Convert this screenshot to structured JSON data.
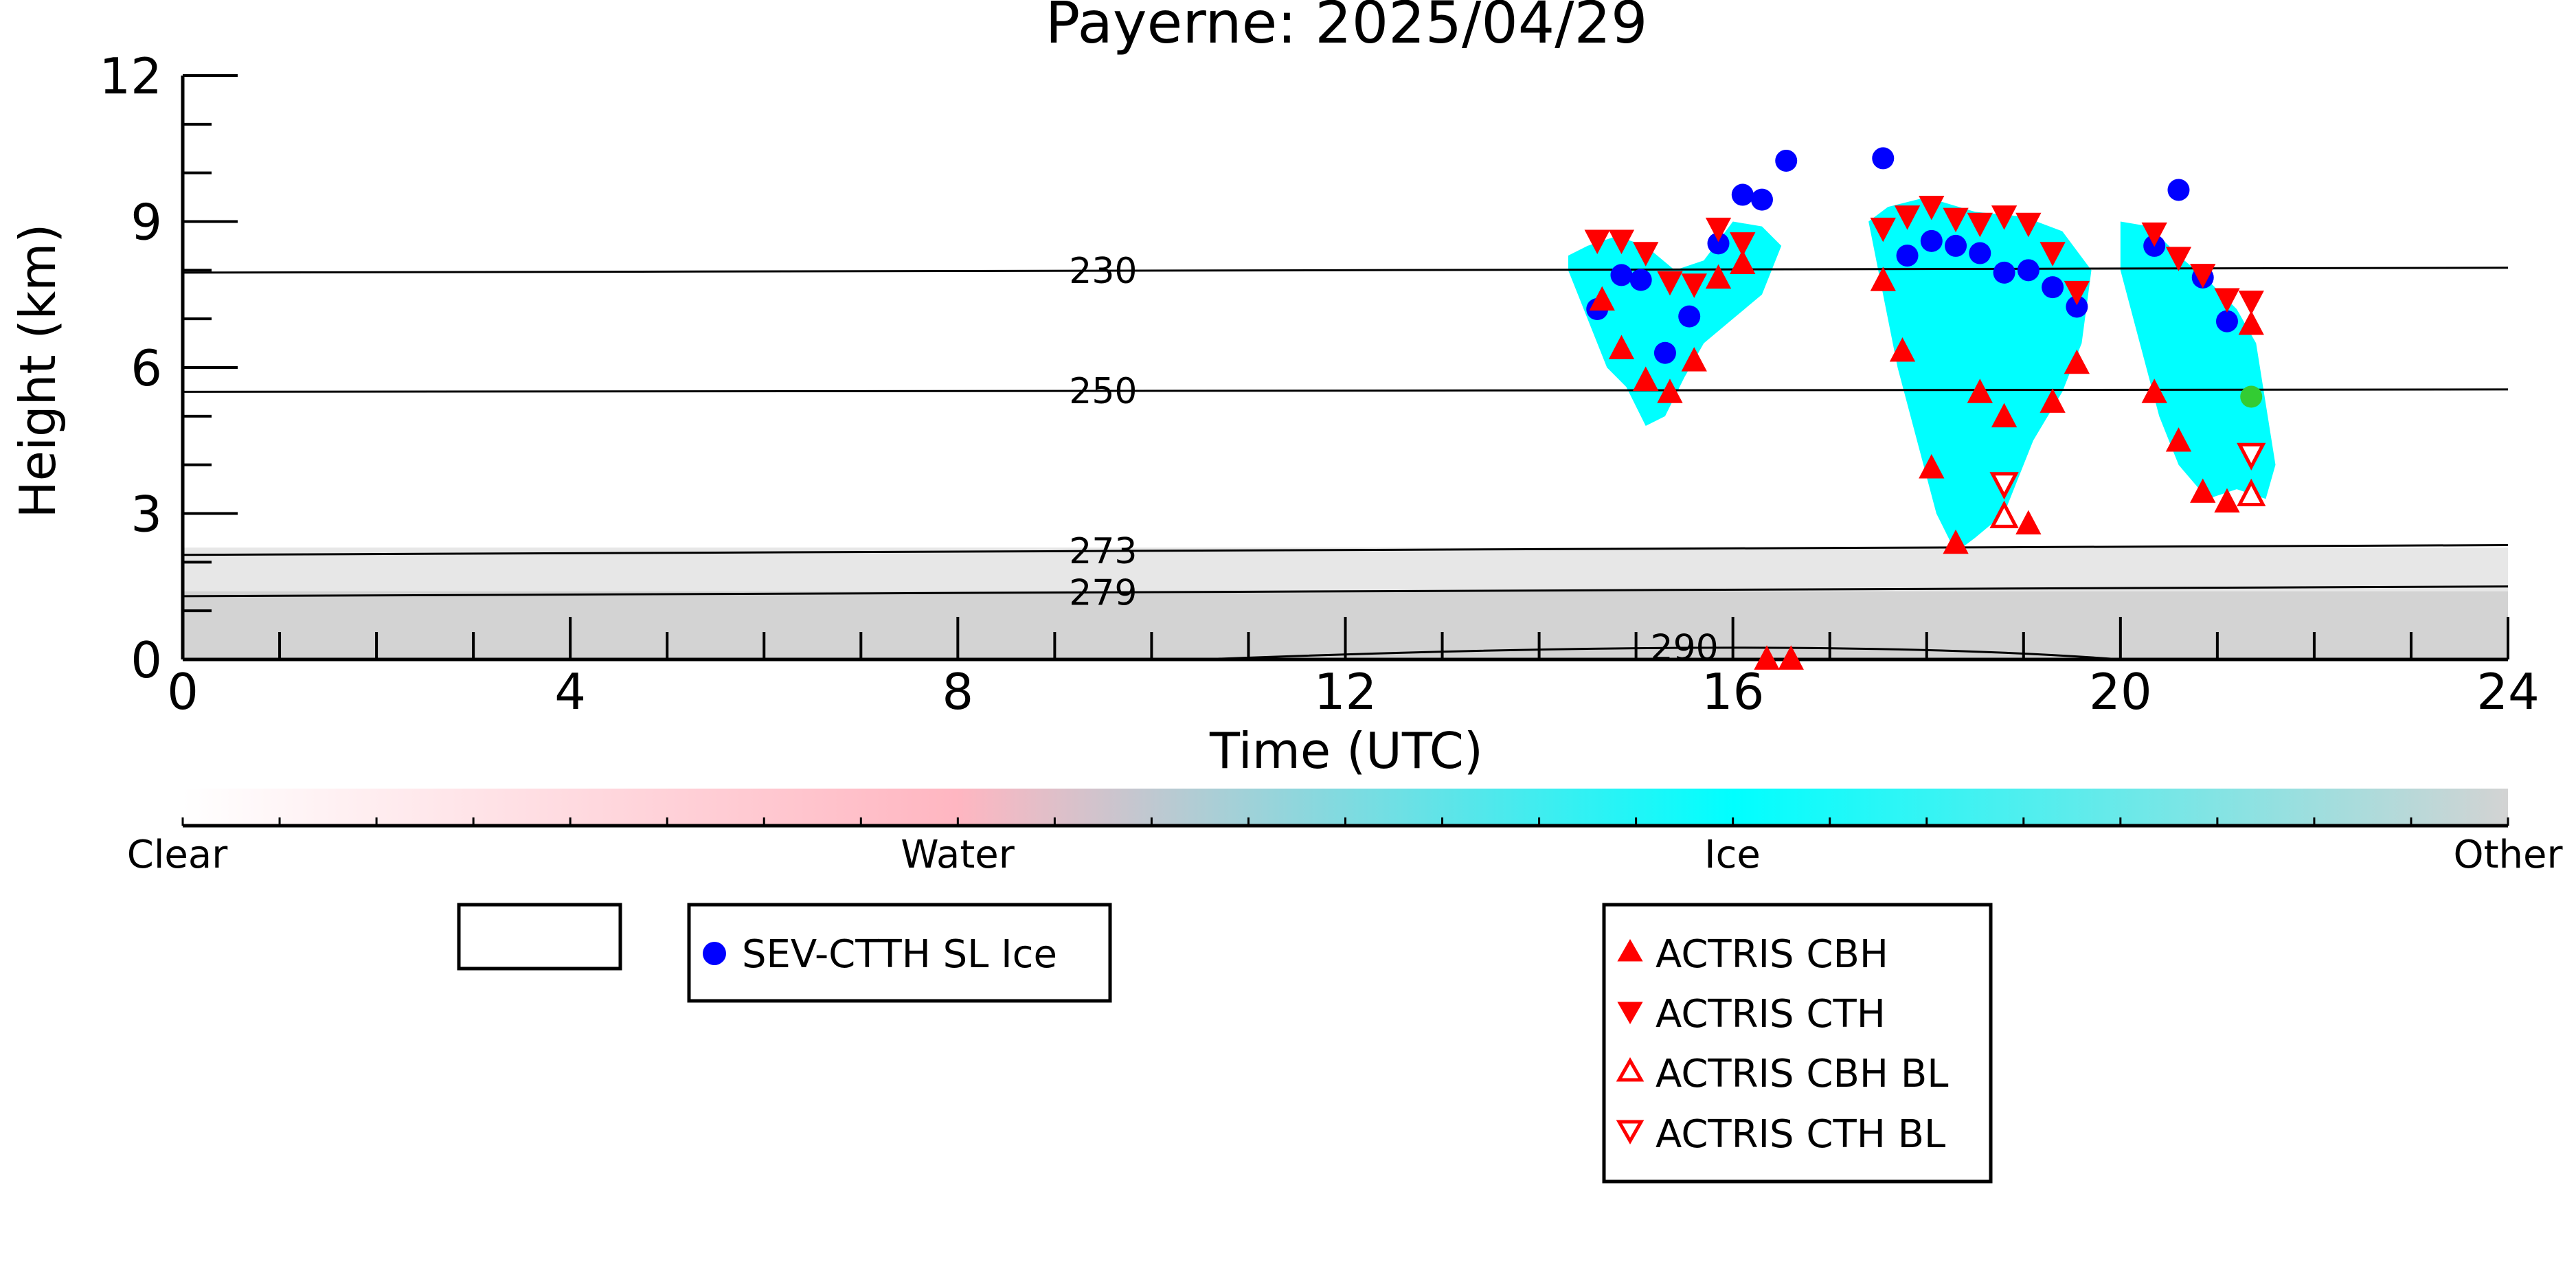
{
  "chart_data": {
    "type": "scatter",
    "title": "Payerne: 2025/04/29",
    "xlabel": "Time (UTC)",
    "ylabel": "Height (km)",
    "xlim": [
      0,
      24
    ],
    "ylim": [
      0,
      12
    ],
    "xticks": [
      0,
      4,
      8,
      12,
      16,
      20,
      24
    ],
    "yticks": [
      0,
      3,
      6,
      9,
      12
    ],
    "isotherms": [
      {
        "label": "230",
        "x": [
          0,
          24
        ],
        "y": [
          7.95,
          8.05
        ],
        "label_x": 9.5
      },
      {
        "label": "250",
        "x": [
          0,
          24
        ],
        "y": [
          5.5,
          5.55
        ],
        "label_x": 9.5
      },
      {
        "label": "273",
        "x": [
          0,
          24
        ],
        "y": [
          2.15,
          2.35
        ],
        "label_x": 9.5
      },
      {
        "label": "279",
        "x": [
          0,
          24
        ],
        "y": [
          1.3,
          1.5
        ],
        "label_x": 9.5
      },
      {
        "label": "290",
        "x": [
          10.5,
          16.8,
          20
        ],
        "y": [
          0,
          0.2,
          0
        ],
        "label_x": 15.5
      }
    ],
    "colorbar": {
      "labels": [
        "Clear",
        "Water",
        "Ice",
        "Other"
      ],
      "colors": [
        "#ffffff",
        "#ffb6c1",
        "#00ffff",
        "#d3d3d3"
      ]
    },
    "legends": [
      {
        "entries": []
      },
      {
        "entries": [
          {
            "label": "SEV-CTTH SL Ice",
            "marker": "circle",
            "color": "#0000ff"
          }
        ]
      },
      {
        "entries": [
          {
            "label": "ACTRIS CBH",
            "marker": "triangle-up",
            "color": "#ff0000",
            "filled": true
          },
          {
            "label": "ACTRIS CTH",
            "marker": "triangle-down",
            "color": "#ff0000",
            "filled": true
          },
          {
            "label": "ACTRIS CBH BL",
            "marker": "triangle-up",
            "color": "#ff0000",
            "filled": false
          },
          {
            "label": "ACTRIS CTH BL",
            "marker": "triangle-down",
            "color": "#ff0000",
            "filled": false
          }
        ]
      }
    ],
    "series": [
      {
        "name": "SEV-CTTH SL Ice",
        "marker": "circle",
        "color": "#0000ff",
        "x": [
          14.6,
          14.85,
          15.05,
          15.3,
          15.55,
          15.85,
          16.1,
          16.3,
          16.55,
          17.55,
          17.8,
          18.05,
          18.3,
          18.55,
          18.8,
          19.05,
          19.3,
          19.55,
          20.35,
          20.6,
          20.85,
          21.1
        ],
        "y": [
          7.2,
          7.9,
          7.8,
          6.3,
          7.05,
          8.55,
          9.55,
          9.45,
          10.25,
          10.3,
          8.3,
          8.6,
          8.5,
          8.35,
          7.95,
          8.0,
          7.65,
          7.25,
          8.5,
          9.65,
          7.85,
          6.95
        ]
      },
      {
        "name": "ACTRIS CTH",
        "marker": "triangle-down",
        "color": "#ff0000",
        "filled": true,
        "x": [
          14.6,
          14.85,
          15.1,
          15.35,
          15.6,
          15.85,
          16.1,
          17.55,
          17.8,
          18.05,
          18.3,
          18.55,
          18.8,
          19.05,
          19.3,
          19.55,
          20.35,
          20.6,
          20.85,
          21.1,
          21.35
        ],
        "y": [
          8.6,
          8.6,
          8.35,
          7.75,
          7.7,
          8.85,
          8.55,
          8.85,
          9.1,
          9.3,
          9.05,
          8.95,
          9.1,
          8.95,
          8.35,
          7.55,
          8.75,
          8.25,
          7.9,
          7.4,
          7.35
        ]
      },
      {
        "name": "ACTRIS CBH",
        "marker": "triangle-up",
        "color": "#ff0000",
        "filled": true,
        "x": [
          14.65,
          14.85,
          15.1,
          15.35,
          15.6,
          15.85,
          16.1,
          17.55,
          17.75,
          18.05,
          18.3,
          18.55,
          18.8,
          19.05,
          19.3,
          19.55,
          20.35,
          20.6,
          20.85,
          21.1,
          21.35
        ],
        "y": [
          7.4,
          6.4,
          5.75,
          5.5,
          6.15,
          7.85,
          8.15,
          7.8,
          6.35,
          3.95,
          2.4,
          5.5,
          5.0,
          2.8,
          5.3,
          6.1,
          5.5,
          4.5,
          3.45,
          3.25,
          6.9
        ]
      },
      {
        "name": "ACTRIS CBH BL",
        "marker": "triangle-up",
        "color": "#ff0000",
        "filled": false,
        "x": [
          18.8,
          21.35
        ],
        "y": [
          2.95,
          3.4
        ]
      },
      {
        "name": "ACTRIS CTH BL",
        "marker": "triangle-down",
        "color": "#ff0000",
        "filled": false,
        "x": [
          18.8,
          21.35
        ],
        "y": [
          3.6,
          4.2
        ]
      },
      {
        "marker": "circle",
        "color": "#33cc33",
        "x": [
          21.35
        ],
        "y": [
          5.4
        ]
      },
      {
        "marker": "triangle-up",
        "color": "#ff0000",
        "filled": true,
        "x": [
          16.35,
          16.6
        ],
        "y": [
          0.02,
          0.02
        ]
      }
    ],
    "regions": {
      "other_low_layer": {
        "color": "#d3d3d3",
        "x_range": [
          0,
          24
        ],
        "top": [
          1.4,
          2.3
        ]
      },
      "ice_clouds": [
        {
          "x": [
            14.3,
            14.5,
            14.8,
            15.1,
            15.4,
            15.7,
            16.0,
            16.3,
            16.5,
            16.3,
            16.0,
            15.7,
            15.5,
            15.3,
            15.1,
            14.9,
            14.7,
            14.5,
            14.3
          ],
          "y": [
            8.3,
            8.5,
            8.7,
            8.5,
            8.0,
            8.2,
            9.0,
            8.9,
            8.5,
            7.5,
            7.0,
            6.5,
            5.8,
            5.0,
            4.8,
            5.6,
            6.0,
            7.0,
            8.0
          ]
        },
        {
          "x": [
            17.4,
            17.6,
            18.0,
            18.5,
            19.0,
            19.4,
            19.7,
            19.6,
            19.4,
            19.1,
            18.8,
            18.5,
            18.3,
            18.1,
            17.9,
            17.7,
            17.5
          ],
          "y": [
            9.0,
            9.3,
            9.5,
            9.2,
            9.1,
            8.8,
            8.0,
            6.5,
            5.5,
            4.5,
            3.0,
            2.5,
            2.2,
            3.0,
            4.5,
            6.0,
            8.0
          ]
        },
        {
          "x": [
            20.0,
            20.3,
            20.6,
            20.9,
            21.2,
            21.4,
            21.6,
            21.5,
            21.2,
            20.9,
            20.6,
            20.4,
            20.2,
            20.0
          ],
          "y": [
            9.0,
            8.9,
            8.3,
            7.8,
            7.2,
            6.5,
            4.0,
            3.3,
            3.5,
            3.3,
            4.0,
            5.0,
            6.5,
            8.0
          ]
        }
      ]
    }
  }
}
